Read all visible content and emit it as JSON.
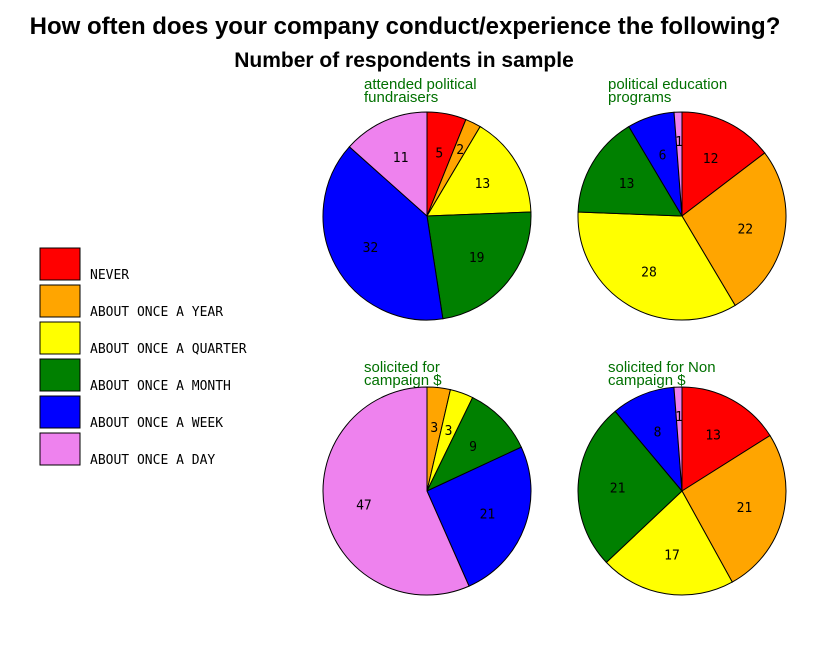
{
  "title": "How often does your company conduct/experience the following?",
  "subtitle": "Number of respondents in sample",
  "colors": {
    "NEVER": "#ff0000",
    "ABOUT ONCE A YEAR": "#ffa500",
    "ABOUT ONCE A QUARTER": "#ffff00",
    "ABOUT ONCE A MONTH": "#008000",
    "ABOUT ONCE A WEEK": "#0000ff",
    "ABOUT ONCE A DAY": "#ee82ee"
  },
  "chart_data": [
    {
      "type": "pie",
      "title_lines": [
        "attended political",
        "fundraisers"
      ],
      "categories": [
        "NEVER",
        "ABOUT ONCE A YEAR",
        "ABOUT ONCE A QUARTER",
        "ABOUT ONCE A MONTH",
        "ABOUT ONCE A WEEK",
        "ABOUT ONCE A DAY"
      ],
      "values": [
        5,
        2,
        13,
        19,
        32,
        11
      ]
    },
    {
      "type": "pie",
      "title_lines": [
        "political education",
        "programs"
      ],
      "categories": [
        "NEVER",
        "ABOUT ONCE A YEAR",
        "ABOUT ONCE A QUARTER",
        "ABOUT ONCE A MONTH",
        "ABOUT ONCE A WEEK",
        "ABOUT ONCE A DAY"
      ],
      "values": [
        12,
        22,
        28,
        13,
        6,
        1
      ]
    },
    {
      "type": "pie",
      "title_lines": [
        "solicited for",
        "campaign $"
      ],
      "categories": [
        "NEVER",
        "ABOUT ONCE A YEAR",
        "ABOUT ONCE A QUARTER",
        "ABOUT ONCE A MONTH",
        "ABOUT ONCE A WEEK",
        "ABOUT ONCE A DAY"
      ],
      "values": [
        0,
        3,
        3,
        9,
        21,
        47
      ]
    },
    {
      "type": "pie",
      "title_lines": [
        "solicited for Non",
        "campaign $"
      ],
      "categories": [
        "NEVER",
        "ABOUT ONCE A YEAR",
        "ABOUT ONCE A QUARTER",
        "ABOUT ONCE A MONTH",
        "ABOUT ONCE A WEEK",
        "ABOUT ONCE A DAY"
      ],
      "values": [
        13,
        21,
        17,
        21,
        8,
        1
      ]
    }
  ],
  "legend": {
    "placement": "left",
    "items": [
      "NEVER",
      "ABOUT ONCE A YEAR",
      "ABOUT ONCE A QUARTER",
      "ABOUT ONCE A MONTH",
      "ABOUT ONCE A WEEK",
      "ABOUT ONCE A DAY"
    ]
  }
}
